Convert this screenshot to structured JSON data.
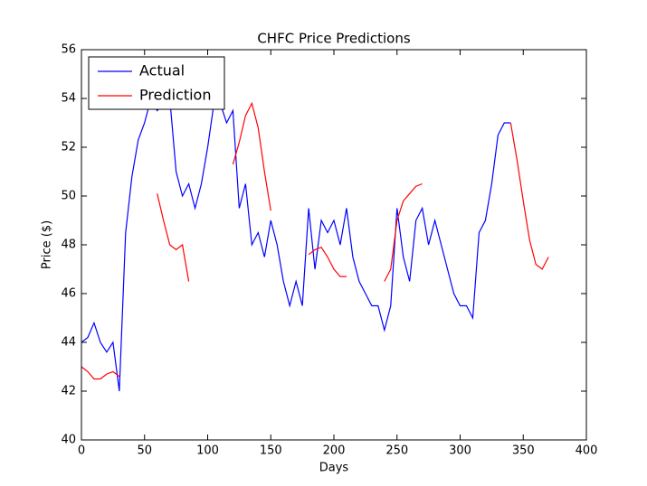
{
  "chart_data": {
    "type": "line",
    "title": "CHFC Price Predictions",
    "x_label": "Days",
    "y_label": "Price ($)",
    "x": [
      0,
      5,
      10,
      15,
      20,
      25,
      30,
      35,
      40,
      45,
      50,
      55,
      60,
      65,
      70,
      75,
      80,
      85,
      90,
      95,
      100,
      105,
      110,
      115,
      120,
      125,
      130,
      135,
      140,
      145,
      150,
      155,
      160,
      165,
      170,
      175,
      180,
      185,
      190,
      195,
      200,
      205,
      210,
      215,
      220,
      225,
      230,
      235,
      240,
      245,
      250,
      255,
      260,
      265,
      270,
      275,
      280,
      285,
      290,
      295,
      300,
      305,
      310,
      315,
      320,
      325,
      330,
      335,
      340,
      345,
      350,
      355,
      360,
      365,
      370
    ],
    "series": [
      {
        "name": "Actual",
        "color": "#0000ff",
        "values": [
          44.0,
          44.2,
          44.8,
          44.0,
          43.6,
          44.0,
          42.0,
          48.5,
          50.8,
          52.3,
          53.0,
          54.0,
          53.5,
          53.8,
          54.0,
          51.0,
          50.0,
          50.5,
          49.5,
          50.5,
          52.0,
          53.8,
          53.8,
          53.0,
          53.5,
          49.5,
          50.5,
          48.0,
          48.5,
          47.5,
          49.0,
          48.0,
          46.5,
          45.5,
          46.5,
          45.5,
          49.5,
          47.0,
          49.0,
          48.5,
          49.0,
          48.0,
          49.5,
          47.5,
          46.5,
          46.0,
          45.5,
          45.5,
          44.5,
          45.5,
          49.5,
          47.5,
          46.5,
          49.0,
          49.5,
          48.0,
          49.0,
          48.0,
          47.0,
          46.0,
          45.5,
          45.5,
          45.0,
          48.5,
          49.0,
          50.5,
          52.5,
          53.0,
          53.0,
          null,
          null,
          null,
          null,
          null,
          null
        ]
      },
      {
        "name": "Prediction",
        "color": "#ff0000",
        "values": [
          43.0,
          42.8,
          42.5,
          42.5,
          42.7,
          42.8,
          42.6,
          null,
          null,
          null,
          null,
          null,
          50.1,
          49.0,
          48.0,
          47.8,
          48.0,
          46.5,
          null,
          null,
          null,
          null,
          null,
          null,
          51.3,
          52.2,
          53.3,
          53.8,
          52.8,
          51.0,
          49.4,
          null,
          null,
          null,
          null,
          null,
          47.6,
          47.8,
          47.9,
          47.5,
          47.0,
          46.7,
          46.7,
          null,
          null,
          null,
          null,
          null,
          46.5,
          47.0,
          49.0,
          49.8,
          50.1,
          50.4,
          50.5,
          null,
          null,
          null,
          null,
          null,
          null,
          null,
          null,
          null,
          null,
          null,
          null,
          null,
          53.0,
          51.5,
          49.8,
          48.2,
          47.2,
          47.0,
          47.5
        ]
      }
    ],
    "xlim": [
      0,
      400
    ],
    "xticks": [
      0,
      50,
      100,
      150,
      200,
      250,
      300,
      350,
      400
    ],
    "ylim": [
      40,
      56
    ],
    "yticks": [
      40,
      42,
      44,
      46,
      48,
      50,
      52,
      54,
      56
    ],
    "legend": "upper left"
  }
}
